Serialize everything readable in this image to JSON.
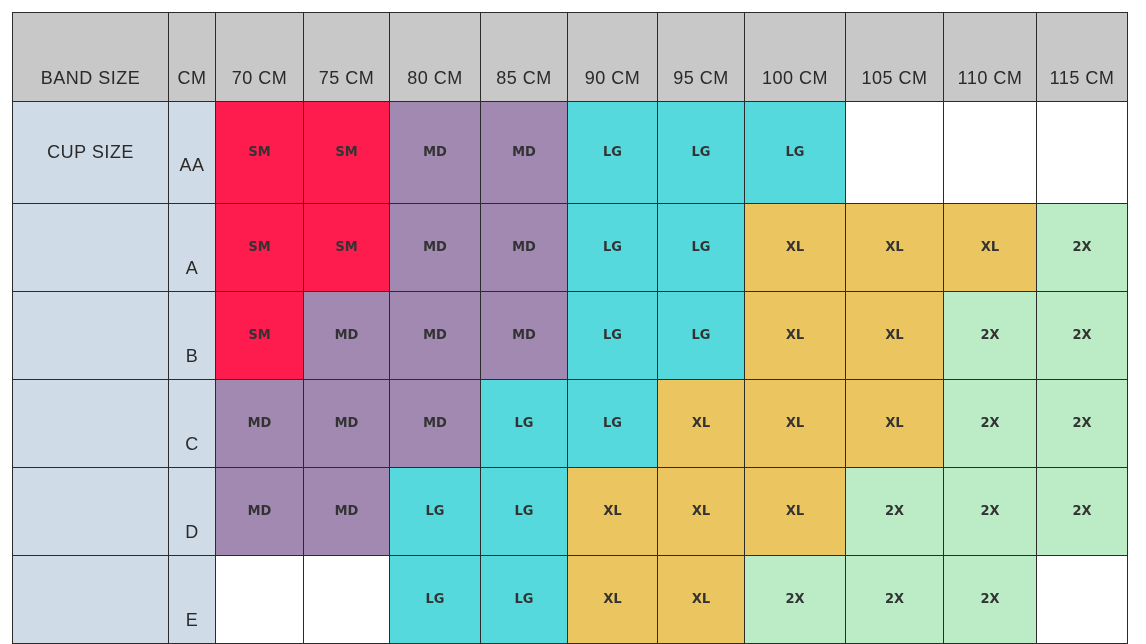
{
  "header": {
    "band_size_label": "BAND SIZE",
    "unit_label": "CM",
    "bands": [
      "70 CM",
      "75 CM",
      "80 CM",
      "85 CM",
      "90 CM",
      "95 CM",
      "100 CM",
      "105 CM",
      "110 CM",
      "115 CM"
    ]
  },
  "cup_size_label": "CUP SIZE",
  "rows": [
    {
      "cup": "AA",
      "sizes": [
        "SM",
        "SM",
        "MD",
        "MD",
        "LG",
        "LG",
        "LG",
        "",
        "",
        ""
      ]
    },
    {
      "cup": "A",
      "sizes": [
        "SM",
        "SM",
        "MD",
        "MD",
        "LG",
        "LG",
        "XL",
        "XL",
        "XL",
        "2X"
      ]
    },
    {
      "cup": "B",
      "sizes": [
        "SM",
        "MD",
        "MD",
        "MD",
        "LG",
        "LG",
        "XL",
        "XL",
        "2X",
        "2X"
      ]
    },
    {
      "cup": "C",
      "sizes": [
        "MD",
        "MD",
        "MD",
        "LG",
        "LG",
        "XL",
        "XL",
        "XL",
        "2X",
        "2X"
      ]
    },
    {
      "cup": "D",
      "sizes": [
        "MD",
        "MD",
        "LG",
        "LG",
        "XL",
        "XL",
        "XL",
        "2X",
        "2X",
        "2X"
      ]
    },
    {
      "cup": "E",
      "sizes": [
        "",
        "",
        "LG",
        "LG",
        "XL",
        "XL",
        "2X",
        "2X",
        "2X",
        ""
      ]
    }
  ],
  "size_colors": {
    "SM": "#fe1c4f",
    "MD": "#a189b1",
    "LG": "#56d9dd",
    "XL": "#ebc55f",
    "2X": "#bbecc6",
    "empty": "#ffffff",
    "header_bg": "#c8c8c8",
    "side_bg": "#cfdce8"
  }
}
